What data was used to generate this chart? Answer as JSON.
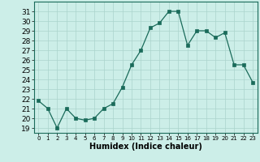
{
  "x": [
    0,
    1,
    2,
    3,
    4,
    5,
    6,
    7,
    8,
    9,
    10,
    11,
    12,
    13,
    14,
    15,
    16,
    17,
    18,
    19,
    20,
    21,
    22,
    23
  ],
  "y": [
    21.8,
    21.0,
    19.0,
    21.0,
    20.0,
    19.8,
    20.0,
    21.0,
    21.5,
    23.2,
    25.5,
    27.0,
    29.3,
    29.8,
    31.0,
    31.0,
    27.5,
    29.0,
    29.0,
    28.3,
    28.8,
    25.5,
    25.5,
    23.7
  ],
  "xlabel": "Humidex (Indice chaleur)",
  "xlim": [
    -0.5,
    23.5
  ],
  "ylim": [
    18.5,
    32.0
  ],
  "yticks": [
    19,
    20,
    21,
    22,
    23,
    24,
    25,
    26,
    27,
    28,
    29,
    30,
    31
  ],
  "xticks": [
    0,
    1,
    2,
    3,
    4,
    5,
    6,
    7,
    8,
    9,
    10,
    11,
    12,
    13,
    14,
    15,
    16,
    17,
    18,
    19,
    20,
    21,
    22,
    23
  ],
  "line_color": "#1a6b5a",
  "marker_color": "#1a6b5a",
  "bg_color": "#cceee8",
  "grid_color": "#aad4cc",
  "xlabel_fontsize": 7,
  "tick_fontsize": 6.5
}
